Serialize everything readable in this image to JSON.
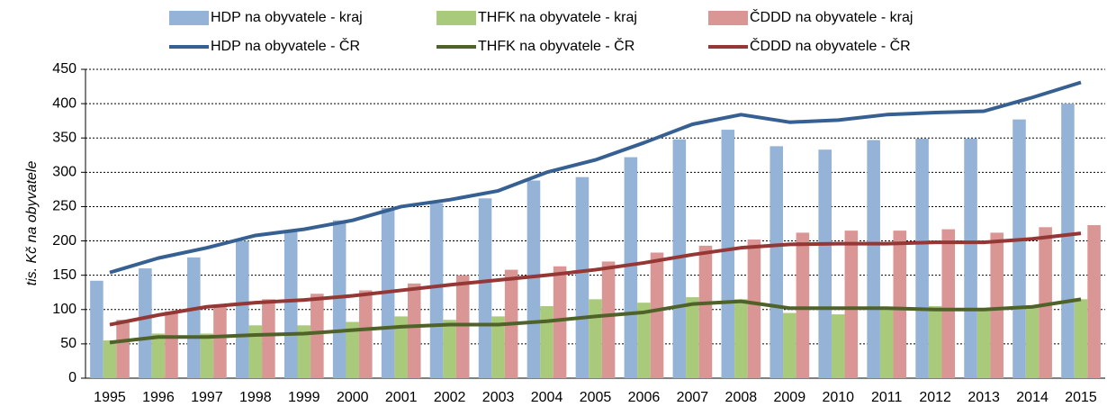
{
  "chart_data": {
    "type": "bar",
    "y_label": "tis. Kč na obyvatele",
    "categories": [
      "1995",
      "1996",
      "1997",
      "1998",
      "1999",
      "2000",
      "2001",
      "2002",
      "2003",
      "2004",
      "2005",
      "2006",
      "2007",
      "2008",
      "2009",
      "2010",
      "2011",
      "2012",
      "2013",
      "2014",
      "2015"
    ],
    "series": [
      {
        "name": "HDP na obyvatele - kraj",
        "type": "bar",
        "color": "#95b3d7",
        "values": [
          142,
          160,
          176,
          200,
          213,
          230,
          248,
          255,
          262,
          288,
          293,
          322,
          348,
          362,
          338,
          333,
          347,
          349,
          349,
          377,
          400
        ]
      },
      {
        "name": "THFK na obyvatele - kraj",
        "type": "bar",
        "color": "#a9c97b",
        "values": [
          55,
          65,
          65,
          77,
          77,
          82,
          90,
          85,
          90,
          105,
          115,
          110,
          118,
          115,
          95,
          93,
          103,
          105,
          100,
          105,
          115
        ]
      },
      {
        "name": "ČDDD na obyvatele - kraj",
        "type": "bar",
        "color": "#d99694",
        "values": [
          85,
          97,
          105,
          115,
          123,
          128,
          138,
          150,
          158,
          163,
          170,
          183,
          193,
          202,
          212,
          215,
          215,
          217,
          212,
          220,
          223
        ]
      },
      {
        "name": "HDP na obyvatele - ČR",
        "type": "line",
        "color": "#376092",
        "values": [
          154,
          175,
          190,
          208,
          217,
          230,
          250,
          260,
          273,
          300,
          318,
          343,
          370,
          384,
          373,
          376,
          384,
          387,
          389,
          409,
          431
        ]
      },
      {
        "name": "THFK na obyvatele - ČR",
        "type": "line",
        "color": "#4f6228",
        "values": [
          52,
          60,
          60,
          63,
          65,
          70,
          75,
          78,
          78,
          83,
          90,
          96,
          108,
          112,
          102,
          102,
          102,
          100,
          100,
          104,
          115
        ]
      },
      {
        "name": "ČDDD na obyvatele - ČR",
        "type": "line",
        "color": "#953735",
        "values": [
          78,
          92,
          104,
          110,
          114,
          120,
          128,
          136,
          143,
          150,
          158,
          168,
          180,
          190,
          195,
          196,
          196,
          198,
          198,
          203,
          211
        ]
      }
    ],
    "ylim": [
      0,
      450
    ],
    "yticks": [
      0,
      50,
      100,
      150,
      200,
      250,
      300,
      350,
      400,
      450
    ],
    "grid": true,
    "legend": "top"
  }
}
